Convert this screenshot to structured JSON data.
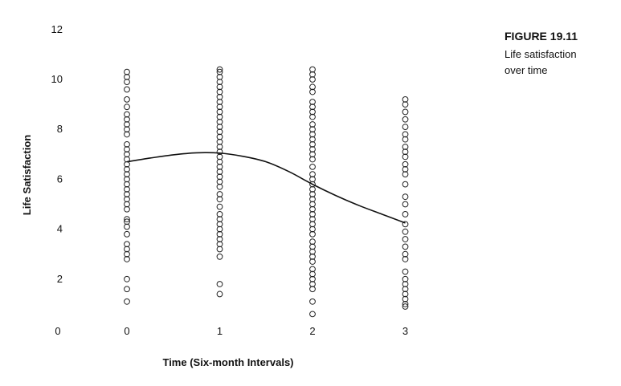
{
  "figure": {
    "caption_title": "FIGURE 19.11",
    "caption_lines": [
      "Life satisfaction",
      "over time"
    ]
  },
  "chart_data": {
    "type": "scatter",
    "title": "",
    "xlabel": "Time (Six-month Intervals)",
    "ylabel": "Life Satisfaction",
    "x_ticks": [
      0,
      1,
      2,
      3
    ],
    "y_ticks": [
      2,
      4,
      6,
      8,
      10,
      12
    ],
    "origin_label": "0",
    "xlim": [
      -1,
      3.35
    ],
    "ylim": [
      0,
      12
    ],
    "grid": false,
    "legend": "none",
    "series": [
      {
        "x": 0,
        "values": [
          1.1,
          1.6,
          2.0,
          2.8,
          3.0,
          3.2,
          3.4,
          3.8,
          4.1,
          4.3,
          4.4,
          4.8,
          5.0,
          5.2,
          5.4,
          5.6,
          5.8,
          6.0,
          6.2,
          6.4,
          6.6,
          6.8,
          7.0,
          7.2,
          7.4,
          7.8,
          8.0,
          8.2,
          8.4,
          8.6,
          8.9,
          9.2,
          9.6,
          9.9,
          10.1,
          10.3
        ]
      },
      {
        "x": 1,
        "values": [
          1.4,
          1.8,
          2.9,
          3.2,
          3.4,
          3.6,
          3.8,
          4.0,
          4.2,
          4.4,
          4.6,
          4.9,
          5.2,
          5.4,
          5.7,
          5.9,
          6.1,
          6.3,
          6.5,
          6.7,
          6.9,
          7.1,
          7.3,
          7.5,
          7.7,
          7.9,
          8.1,
          8.3,
          8.5,
          8.7,
          8.9,
          9.1,
          9.3,
          9.5,
          9.7,
          9.9,
          10.1,
          10.3,
          10.4
        ]
      },
      {
        "x": 2,
        "values": [
          0.6,
          1.1,
          1.6,
          1.8,
          2.0,
          2.2,
          2.4,
          2.7,
          2.9,
          3.1,
          3.3,
          3.5,
          3.8,
          4.0,
          4.2,
          4.4,
          4.6,
          4.8,
          5.0,
          5.2,
          5.4,
          5.6,
          5.8,
          6.0,
          6.2,
          6.5,
          6.8,
          7.0,
          7.2,
          7.4,
          7.6,
          7.8,
          8.0,
          8.2,
          8.5,
          8.7,
          8.9,
          9.1,
          9.5,
          9.7,
          10.0,
          10.2,
          10.4
        ]
      },
      {
        "x": 3,
        "values": [
          0.9,
          1.0,
          1.2,
          1.4,
          1.6,
          1.8,
          2.0,
          2.3,
          2.8,
          3.0,
          3.3,
          3.6,
          3.9,
          4.2,
          4.6,
          5.0,
          5.3,
          5.8,
          6.2,
          6.4,
          6.6,
          6.9,
          7.1,
          7.3,
          7.6,
          7.8,
          8.1,
          8.4,
          8.7,
          9.0,
          9.2
        ]
      }
    ],
    "trend_line": {
      "x": [
        0,
        0.25,
        0.5,
        0.75,
        1,
        1.25,
        1.5,
        1.75,
        2,
        2.25,
        2.5,
        2.75,
        3
      ],
      "y": [
        6.7,
        6.85,
        6.98,
        7.06,
        7.05,
        6.92,
        6.7,
        6.3,
        5.8,
        5.35,
        4.95,
        4.6,
        4.25
      ]
    }
  }
}
